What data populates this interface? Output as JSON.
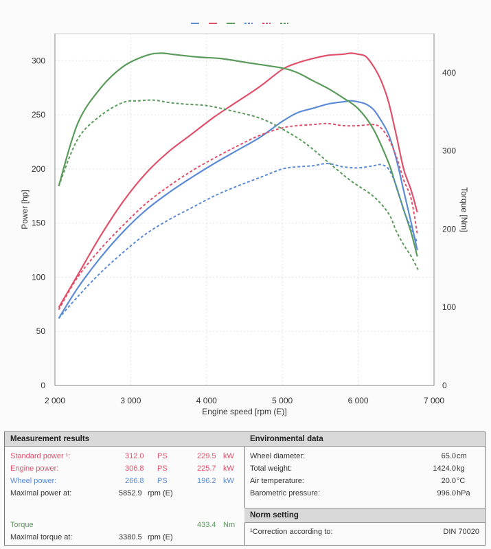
{
  "chart_data": {
    "type": "line",
    "xlabel": "Engine speed [rpm (E)]",
    "ylabel": "Power [hp]",
    "y2label": "Torque [Nm]",
    "xlim": [
      2000,
      7000
    ],
    "ylim": [
      0,
      325
    ],
    "y2lim": [
      0,
      450
    ],
    "xticks": [
      "2 000",
      "3 000",
      "4 000",
      "5 000",
      "6 000",
      "7 000"
    ],
    "yticks": [
      "0",
      "50",
      "100",
      "150",
      "200",
      "250",
      "300"
    ],
    "y2ticks": [
      "0",
      "100",
      "200",
      "300",
      "400"
    ],
    "grid": true,
    "legend": "top-center",
    "series": [
      {
        "color": "#5b8ad6",
        "dash": false,
        "axis": "left",
        "x": [
          2050,
          2300,
          2600,
          2900,
          3200,
          3500,
          3800,
          4100,
          4400,
          4700,
          5000,
          5200,
          5400,
          5600,
          5800,
          5900,
          6000,
          6100,
          6200,
          6300,
          6400,
          6500,
          6600,
          6700,
          6780
        ],
        "y": [
          62,
          90,
          118,
          142,
          162,
          178,
          192,
          205,
          217,
          229,
          244,
          252,
          256,
          260,
          262,
          263,
          262,
          260,
          255,
          245,
          232,
          210,
          180,
          150,
          125
        ]
      },
      {
        "color": "#e0506a",
        "dash": false,
        "axis": "left",
        "x": [
          2050,
          2300,
          2600,
          2900,
          3200,
          3500,
          3800,
          4100,
          4400,
          4700,
          5000,
          5200,
          5400,
          5600,
          5800,
          5900,
          6000,
          6100,
          6200,
          6300,
          6400,
          6500,
          6600,
          6700,
          6780
        ],
        "y": [
          72,
          102,
          138,
          170,
          196,
          216,
          232,
          248,
          262,
          276,
          292,
          298,
          302,
          305,
          306,
          307,
          306,
          304,
          295,
          282,
          262,
          232,
          200,
          180,
          160
        ]
      },
      {
        "color": "#5a9a5a",
        "dash": false,
        "axis": "right",
        "x": [
          2050,
          2300,
          2600,
          2900,
          3200,
          3400,
          3600,
          3900,
          4200,
          4600,
          5000,
          5200,
          5400,
          5600,
          5800,
          6000,
          6200,
          6400,
          6500,
          6600,
          6700,
          6780
        ],
        "y": [
          255,
          335,
          380,
          408,
          422,
          425,
          423,
          420,
          418,
          412,
          406,
          400,
          390,
          380,
          368,
          354,
          328,
          285,
          255,
          225,
          195,
          165
        ]
      },
      {
        "color": "#5b8ad6",
        "dash": true,
        "axis": "left",
        "x": [
          2050,
          2300,
          2600,
          2900,
          3200,
          3500,
          3800,
          4100,
          4400,
          4700,
          5000,
          5200,
          5400,
          5600,
          5800,
          6000,
          6200,
          6300,
          6400,
          6500,
          6600,
          6700,
          6780
        ],
        "y": [
          62,
          82,
          104,
          123,
          140,
          153,
          164,
          175,
          184,
          192,
          200,
          202,
          203,
          205,
          202,
          201,
          203,
          204,
          200,
          185,
          162,
          145,
          132
        ]
      },
      {
        "color": "#e0506a",
        "dash": true,
        "axis": "left",
        "x": [
          2050,
          2300,
          2600,
          2900,
          3200,
          3500,
          3800,
          4100,
          4400,
          4700,
          5000,
          5200,
          5400,
          5600,
          5800,
          6000,
          6200,
          6300,
          6400,
          6500,
          6600,
          6700,
          6780
        ],
        "y": [
          70,
          100,
          126,
          148,
          168,
          184,
          198,
          210,
          221,
          231,
          238,
          240,
          241,
          242,
          240,
          240,
          241,
          238,
          228,
          212,
          190,
          172,
          140
        ]
      },
      {
        "color": "#5a9a5a",
        "dash": true,
        "axis": "right",
        "x": [
          2050,
          2300,
          2600,
          2900,
          3100,
          3300,
          3500,
          3700,
          4000,
          4300,
          4700,
          5000,
          5300,
          5600,
          5900,
          6200,
          6400,
          6500,
          6600,
          6700,
          6790
        ],
        "y": [
          255,
          315,
          345,
          362,
          364,
          365,
          362,
          360,
          358,
          352,
          342,
          328,
          310,
          286,
          262,
          242,
          220,
          198,
          180,
          165,
          148
        ]
      }
    ]
  },
  "measurement": {
    "title": "Measurement results",
    "rows": [
      {
        "label": "Standard power ¹:",
        "v1": "312.0",
        "u1": "PS",
        "v2": "229.5",
        "u2": "kW"
      },
      {
        "label": "Engine power:",
        "v1": "306.8",
        "u1": "PS",
        "v2": "225.7",
        "u2": "kW"
      },
      {
        "label": "Wheel power:",
        "v1": "266.8",
        "u1": "PS",
        "v2": "196.2",
        "u2": "kW"
      },
      {
        "label": "Maximal power at:",
        "v1": "5852.9",
        "u1": "rpm (E)"
      },
      {
        "label": "Torque",
        "v2": "433.4",
        "u2": "Nm"
      },
      {
        "label": "Maximal torque at:",
        "v1": "3380.5",
        "u1": "rpm (E)"
      }
    ]
  },
  "environment": {
    "title": "Environmental data",
    "rows": [
      {
        "label": "Wheel diameter:",
        "value": "65.0",
        "unit": "cm"
      },
      {
        "label": "Total weight:",
        "value": "1424.0",
        "unit": "kg"
      },
      {
        "label": "Air temperature:",
        "value": "20.0",
        "unit": "°C"
      },
      {
        "label": "Barometric pressure:",
        "value": "996.0",
        "unit": "hPa"
      }
    ]
  },
  "norm": {
    "title": "Norm setting",
    "label": "¹Correction according to:",
    "value": "DIN 70020"
  }
}
